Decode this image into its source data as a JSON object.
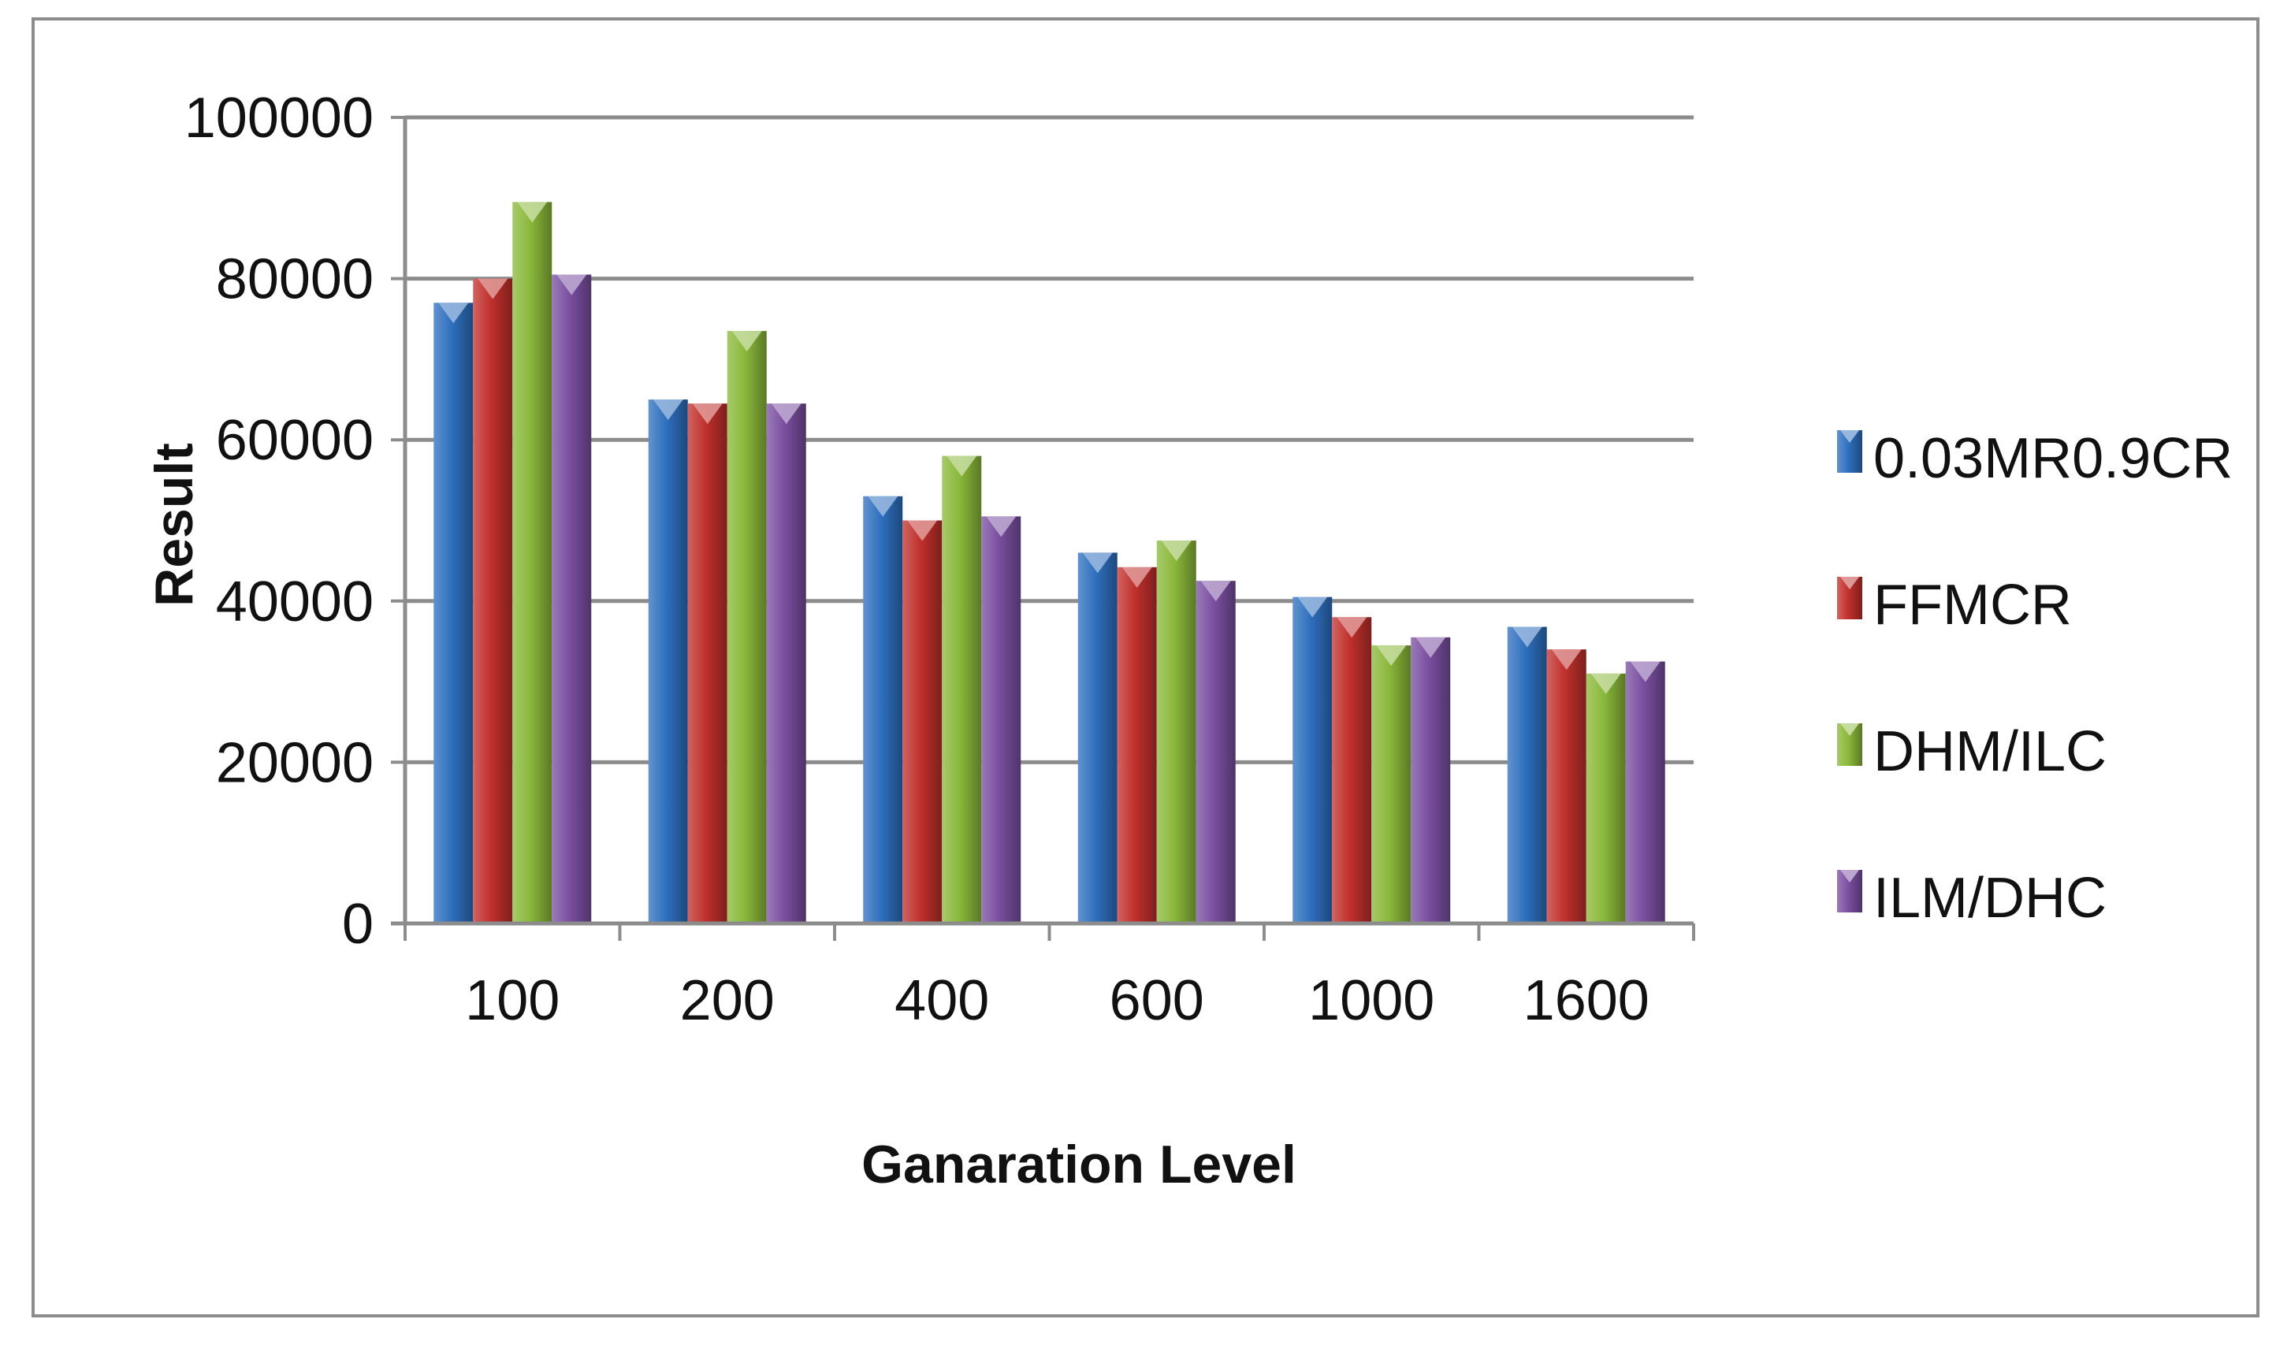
{
  "chart_data": {
    "type": "bar",
    "title": "",
    "xlabel": "Ganaration Level",
    "ylabel": "Result",
    "categories": [
      "100",
      "200",
      "400",
      "600",
      "1000",
      "1600"
    ],
    "ylim": [
      0,
      100000
    ],
    "yticks": [
      0,
      20000,
      40000,
      60000,
      80000,
      100000
    ],
    "ytick_labels": [
      "0",
      "20000",
      "40000",
      "60000",
      "80000",
      "100000"
    ],
    "grid": true,
    "legend_position": "right",
    "series": [
      {
        "name": "0.03MR0.9CR",
        "color": "#2e6fbe",
        "values": [
          77000,
          65000,
          53000,
          46000,
          40500,
          36800
        ]
      },
      {
        "name": "FFMCR",
        "color": "#c0302c",
        "values": [
          80000,
          64500,
          50000,
          44200,
          38000,
          34000
        ]
      },
      {
        "name": "DHM/ILC",
        "color": "#8ab83a",
        "values": [
          89500,
          73500,
          58000,
          47500,
          34500,
          31000
        ]
      },
      {
        "name": "ILM/DHC",
        "color": "#7a4ea0",
        "values": [
          80500,
          64500,
          50500,
          42500,
          35500,
          32500
        ]
      }
    ]
  }
}
